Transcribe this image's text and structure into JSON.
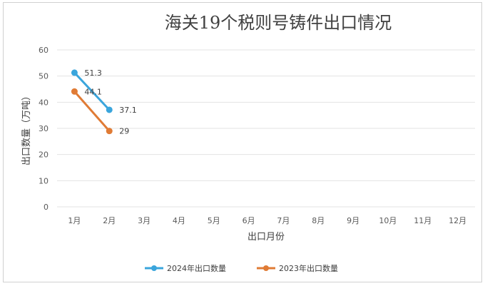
{
  "chart_data": {
    "type": "line",
    "title": "海关19个税则号铸件出口情况",
    "xlabel": "出口月份",
    "ylabel": "出口数量（万吨）",
    "categories": [
      "1月",
      "2月",
      "3月",
      "4月",
      "5月",
      "6月",
      "7月",
      "8月",
      "9月",
      "10月",
      "11月",
      "12月"
    ],
    "ylim": [
      0,
      60
    ],
    "yticks": [
      0,
      10,
      20,
      30,
      40,
      50,
      60
    ],
    "grid": true,
    "legend_position": "bottom",
    "series": [
      {
        "name": "2024年出口数量",
        "color": "#3aa5dc",
        "values": [
          51.3,
          37.1,
          null,
          null,
          null,
          null,
          null,
          null,
          null,
          null,
          null,
          null
        ],
        "labels": [
          "51.3",
          "37.1"
        ]
      },
      {
        "name": "2023年出口数量",
        "color": "#e07b35",
        "values": [
          44.1,
          29,
          null,
          null,
          null,
          null,
          null,
          null,
          null,
          null,
          null,
          null
        ],
        "labels": [
          "44.1",
          "29"
        ]
      }
    ]
  }
}
